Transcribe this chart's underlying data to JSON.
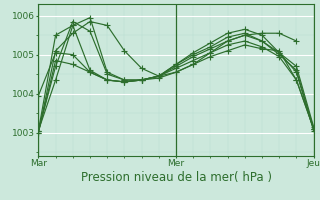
{
  "background_color": "#cce8dc",
  "plot_bg_color": "#cce8dc",
  "grid_major_color": "#ffffff",
  "grid_minor_color": "#b8ddd0",
  "line_color": "#2d6e2d",
  "marker_color": "#2d6e2d",
  "xlabel": "Pression niveau de la mer( hPa )",
  "xlabel_color": "#2d6e2d",
  "ylim": [
    1002.4,
    1006.3
  ],
  "yticks": [
    1003,
    1004,
    1005,
    1006
  ],
  "xtick_labels": [
    "Mar",
    "Mer",
    "Jeu"
  ],
  "xtick_positions": [
    0,
    48,
    96
  ],
  "marker_size": 2.2,
  "linewidth": 0.85,
  "tick_label_color": "#2d6e2d",
  "tick_label_fontsize": 6.5,
  "xlabel_fontsize": 8.5,
  "series": [
    {
      "x": [
        0,
        6,
        12,
        18,
        24,
        30,
        36,
        42,
        48,
        54,
        60,
        66,
        72,
        78,
        84,
        90,
        96
      ],
      "y": [
        1003.0,
        1004.85,
        1004.75,
        1004.55,
        1004.35,
        1004.3,
        1004.35,
        1004.4,
        1004.55,
        1004.75,
        1004.95,
        1005.1,
        1005.25,
        1005.15,
        1005.1,
        1004.35,
        1003.1
      ]
    },
    {
      "x": [
        0,
        6,
        12,
        18,
        24,
        30,
        36,
        42,
        48,
        54,
        60,
        66,
        72,
        78,
        84,
        90,
        96
      ],
      "y": [
        1003.0,
        1005.1,
        1005.55,
        1005.85,
        1005.75,
        1005.1,
        1004.65,
        1004.45,
        1004.55,
        1004.75,
        1005.05,
        1005.35,
        1005.5,
        1005.35,
        1005.05,
        1004.7,
        1003.15
      ]
    },
    {
      "x": [
        0,
        6,
        12,
        18,
        24,
        30,
        36,
        42,
        48,
        54,
        60,
        66,
        72,
        78,
        84,
        90,
        96
      ],
      "y": [
        1003.05,
        1005.5,
        1005.75,
        1004.6,
        1004.35,
        1004.3,
        1004.35,
        1004.45,
        1004.65,
        1004.85,
        1005.05,
        1005.25,
        1005.35,
        1005.2,
        1004.95,
        1004.35,
        1003.1
      ]
    },
    {
      "x": [
        0,
        6,
        12,
        18,
        24,
        30,
        36,
        42,
        48,
        54,
        60,
        66,
        72,
        78,
        84,
        90,
        96
      ],
      "y": [
        1003.05,
        1004.7,
        1005.85,
        1005.6,
        1004.5,
        1004.35,
        1004.35,
        1004.45,
        1004.75,
        1005.0,
        1005.2,
        1005.45,
        1005.55,
        1005.35,
        1005.0,
        1004.6,
        1003.1
      ]
    },
    {
      "x": [
        0,
        6,
        12,
        18,
        24,
        30,
        36,
        42,
        48,
        54,
        60,
        66,
        72,
        78,
        84,
        90
      ],
      "y": [
        1003.95,
        1005.05,
        1005.0,
        1004.55,
        1004.35,
        1004.3,
        1004.35,
        1004.45,
        1004.7,
        1004.95,
        1005.15,
        1005.35,
        1005.5,
        1005.55,
        1005.55,
        1005.35
      ]
    },
    {
      "x": [
        0,
        6,
        12,
        18,
        24,
        30,
        36,
        42,
        48,
        54,
        60,
        66,
        72,
        78,
        84,
        90,
        96
      ],
      "y": [
        1003.05,
        1004.35,
        1005.75,
        1005.95,
        1004.55,
        1004.35,
        1004.35,
        1004.45,
        1004.75,
        1005.05,
        1005.3,
        1005.55,
        1005.65,
        1005.5,
        1005.05,
        1004.55,
        1003.05
      ]
    }
  ]
}
